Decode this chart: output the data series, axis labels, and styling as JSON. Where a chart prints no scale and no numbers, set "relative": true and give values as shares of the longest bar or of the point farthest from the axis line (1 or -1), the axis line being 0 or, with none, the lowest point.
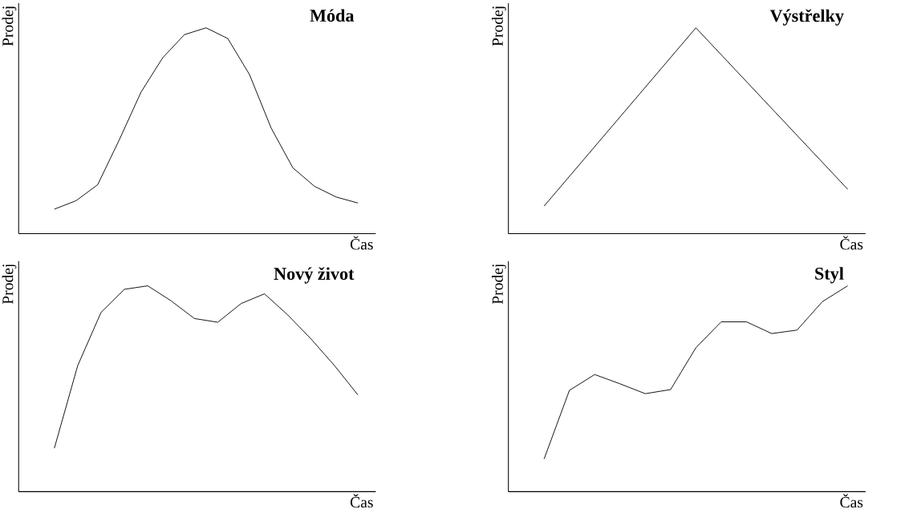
{
  "chart_data": [
    {
      "type": "line",
      "relative": true,
      "title": "Móda",
      "xlabel": "Čas",
      "ylabel": "Prodej",
      "color": "#000000",
      "categories": [
        null,
        null,
        null,
        null,
        null,
        null,
        null,
        null,
        null,
        null,
        null,
        null,
        null,
        null,
        null
      ],
      "values": [
        0.119,
        0.16,
        0.238,
        0.457,
        0.688,
        0.855,
        0.967,
        1,
        0.948,
        0.773,
        0.513,
        0.32,
        0.23,
        0.178,
        0.149
      ]
    },
    {
      "type": "line",
      "relative": true,
      "title": "Výstřelky",
      "xlabel": "Čas",
      "ylabel": "Prodej",
      "color": "#000000",
      "categories": [
        null,
        null,
        null
      ],
      "values": [
        0.134,
        1,
        0.216
      ]
    },
    {
      "type": "line",
      "relative": true,
      "title": "Nový život",
      "xlabel": "Čas",
      "ylabel": "Prodej",
      "color": "#000000",
      "categories": [
        null,
        null,
        null,
        null,
        null,
        null,
        null,
        null,
        null,
        null,
        null,
        null,
        null,
        null
      ],
      "values": [
        0.211,
        0.612,
        0.871,
        0.983,
        1,
        0.927,
        0.841,
        0.823,
        0.914,
        0.961,
        0.858,
        0.741,
        0.612,
        0.47
      ]
    },
    {
      "type": "line",
      "relative": true,
      "title": "Styl",
      "xlabel": "Čas",
      "ylabel": "Prodej",
      "color": "#000000",
      "categories": [
        null,
        null,
        null,
        null,
        null,
        null,
        null,
        null,
        null,
        null,
        null,
        null,
        null
      ],
      "values": [
        0.159,
        0.492,
        0.569,
        0.524,
        0.476,
        0.496,
        0.699,
        0.825,
        0.825,
        0.768,
        0.785,
        0.923,
        1
      ]
    }
  ]
}
